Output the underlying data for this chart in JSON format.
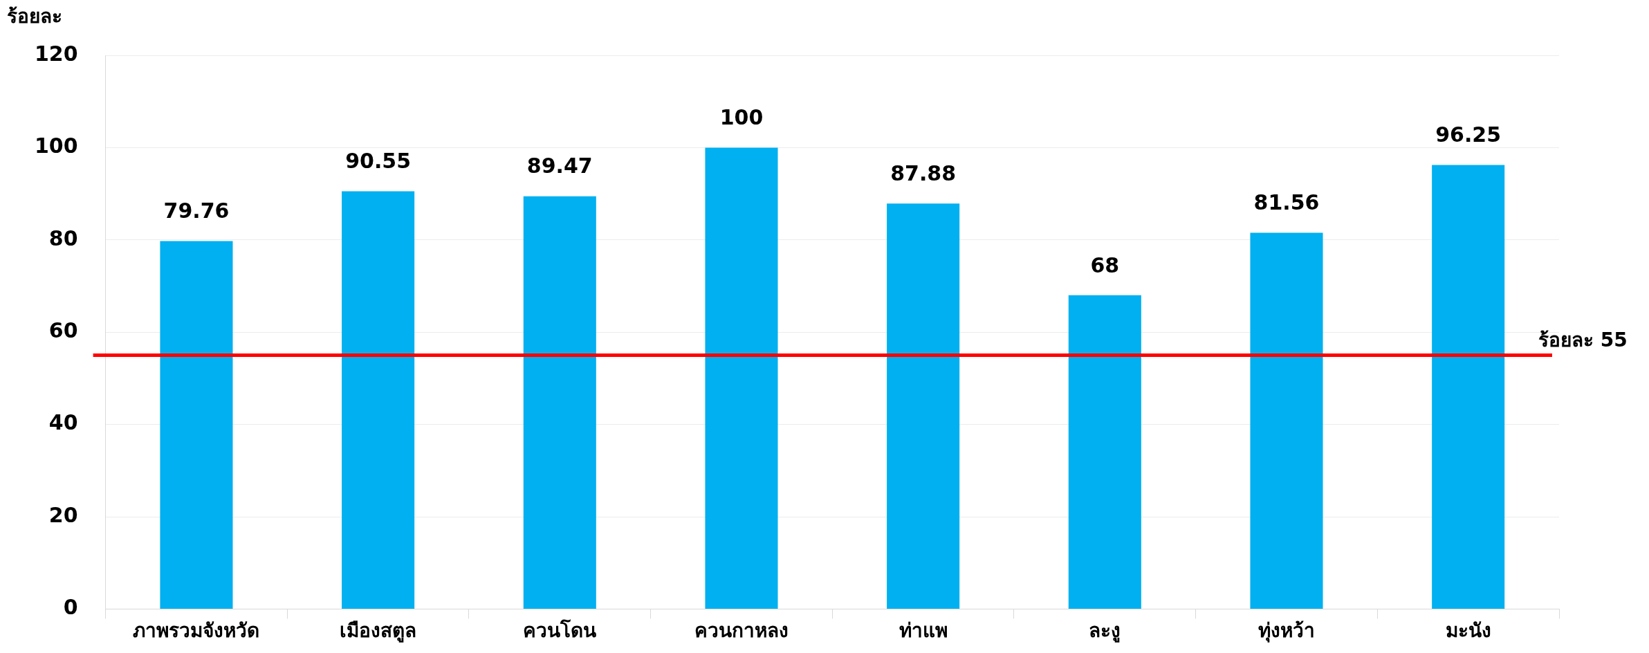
{
  "chart_data": {
    "type": "bar",
    "ylabel": "ร้อยละ",
    "categories": [
      "ภาพรวมจังหวัด",
      "เมืองสตูล",
      "ควนโดน",
      "ควนกาหลง",
      "ท่าแพ",
      "ละงู",
      "ทุ่งหว้า",
      "มะนัง"
    ],
    "values": [
      79.76,
      90.55,
      89.47,
      100,
      87.88,
      68,
      81.56,
      96.25
    ],
    "color": "#00b0f0",
    "ylim": [
      0,
      120
    ],
    "yticks": [
      0,
      20,
      40,
      60,
      80,
      100,
      120
    ],
    "grid": "y",
    "data_labels": true,
    "ref_lines": [
      {
        "axis": "y",
        "value": 55,
        "label": "ร้อยละ 55",
        "color": "#ff0000"
      }
    ]
  }
}
